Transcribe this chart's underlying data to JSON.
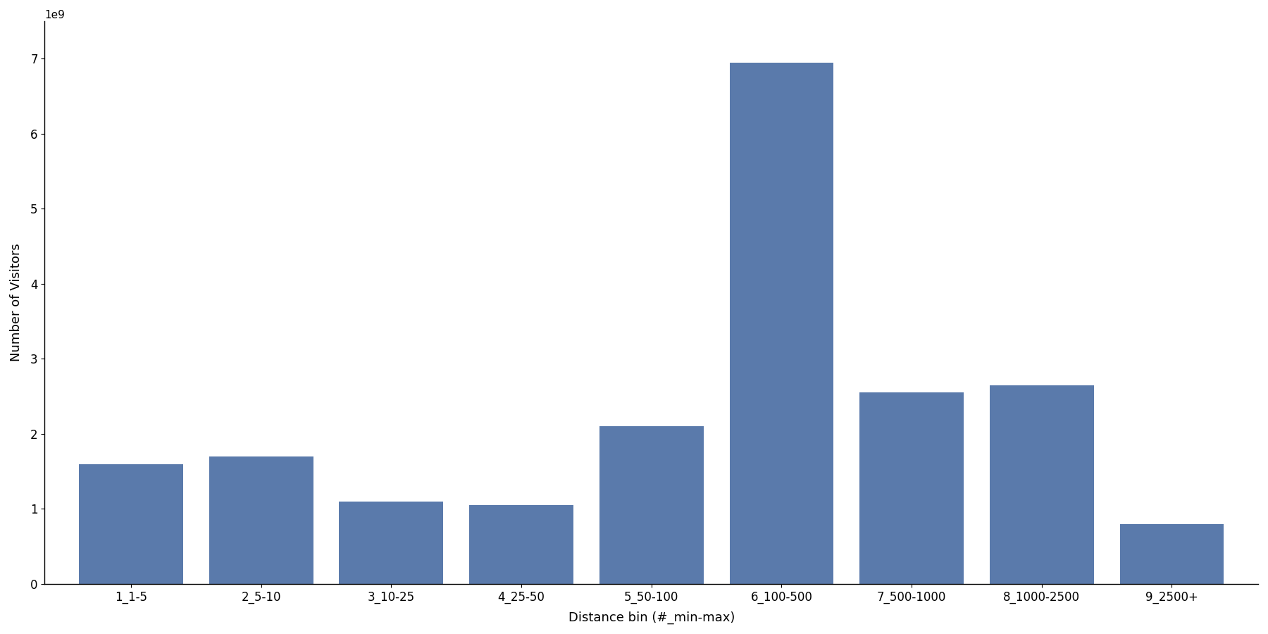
{
  "categories": [
    "1_1-5",
    "2_5-10",
    "3_10-25",
    "4_25-50",
    "5_50-100",
    "6_100-500",
    "7_500-1000",
    "8_1000-2500",
    "9_2500+"
  ],
  "values": [
    1600000000.0,
    1700000000.0,
    1100000000.0,
    1050000000.0,
    2100000000.0,
    6950000000.0,
    2550000000.0,
    2650000000.0,
    800000000.0
  ],
  "bar_color": "#5a7aab",
  "xlabel": "Distance bin (#_min-max)",
  "ylabel": "Number of Visitors",
  "ylim": [
    0,
    7500000000.0
  ],
  "yticks": [
    0,
    1000000000.0,
    2000000000.0,
    3000000000.0,
    4000000000.0,
    5000000000.0,
    6000000000.0,
    7000000000.0
  ],
  "background_color": "#ffffff",
  "figsize": [
    18.0,
    9.0
  ],
  "dpi": 100
}
